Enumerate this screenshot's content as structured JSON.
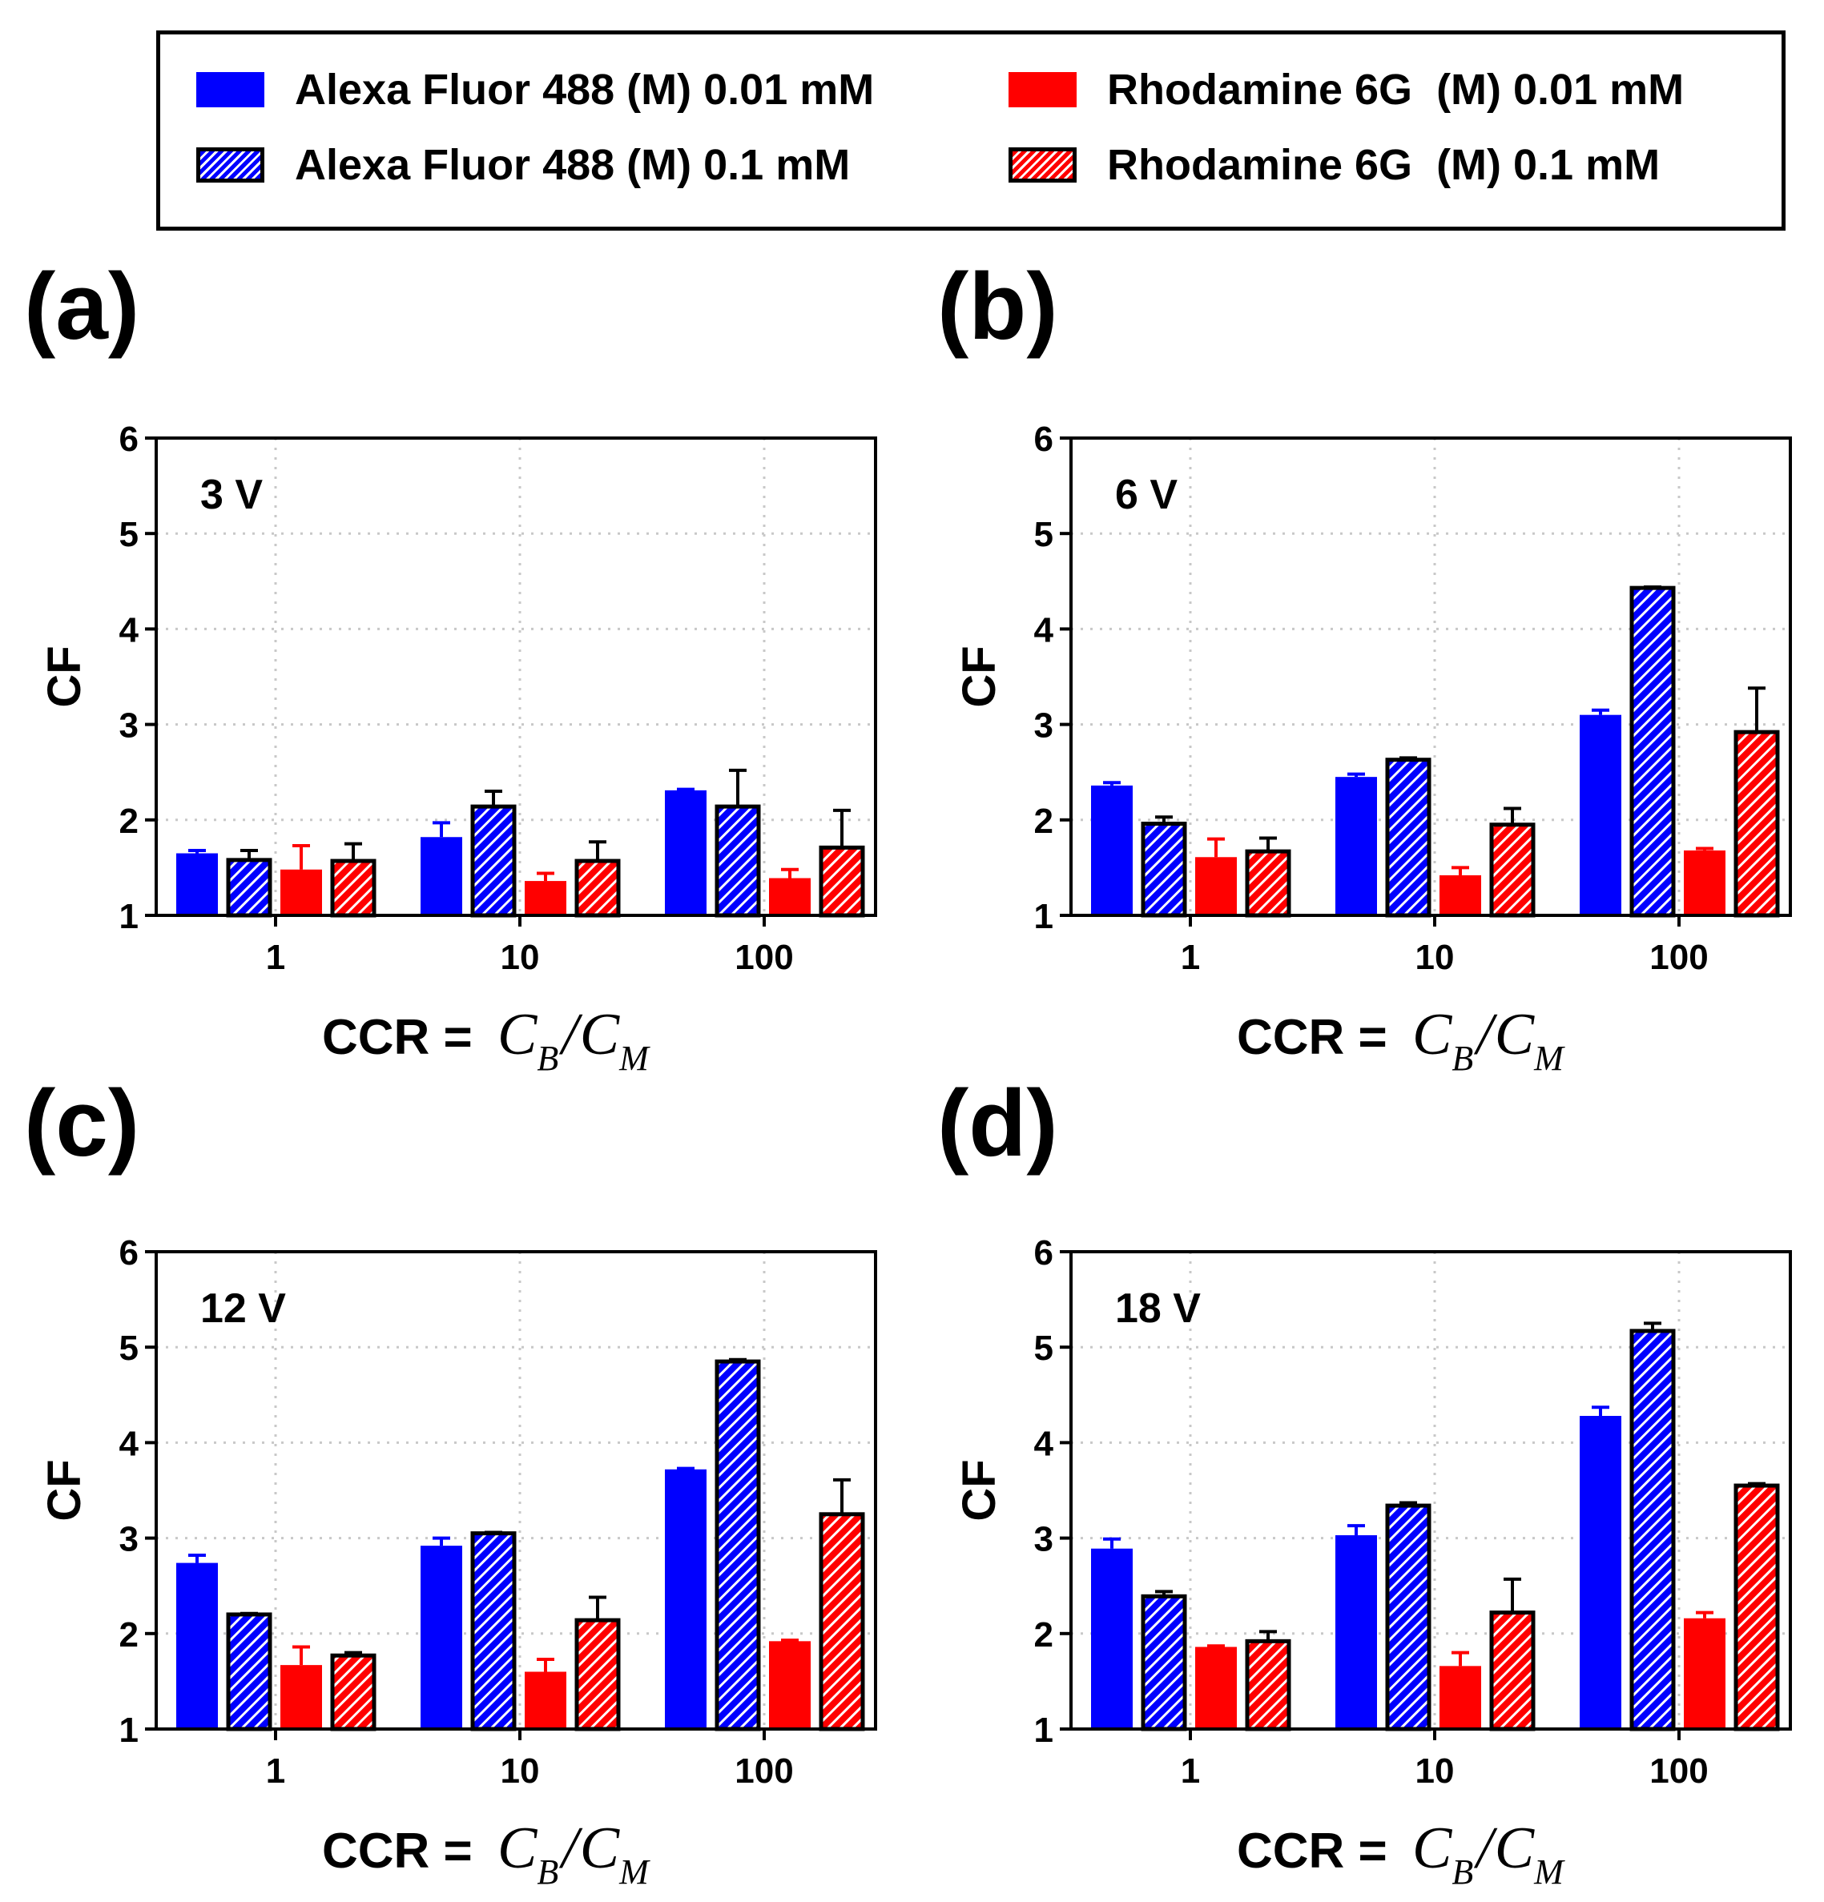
{
  "legend": {
    "items": [
      {
        "label": "Alexa Fluor 488 (M) 0.01 mM",
        "style": "solid-blue"
      },
      {
        "label": "Alexa Fluor 488 (M) 0.1 mM",
        "style": "hatch-blue"
      },
      {
        "label": "Rhodamine 6G  (M) 0.01 mM",
        "style": "solid-red"
      },
      {
        "label": "Rhodamine 6G  (M) 0.1 mM",
        "style": "hatch-red"
      }
    ]
  },
  "colors": {
    "blue": "#0000ff",
    "red": "#ff0000",
    "grid": "#c8c8c8",
    "axis": "#000000"
  },
  "chart_data": [
    {
      "panel": "(a)",
      "type": "bar",
      "annotation": "3 V",
      "categories": [
        "1",
        "10",
        "100"
      ],
      "ylabel": "CF",
      "xlabel_prefix": "CCR = ",
      "xlabel_num": "C",
      "xlabel_num_sub": "B",
      "xlabel_slash": "/",
      "xlabel_den": "C",
      "xlabel_den_sub": "M",
      "ylim": [
        1,
        6
      ],
      "yticks": [
        "1",
        "2",
        "3",
        "4",
        "5",
        "6"
      ],
      "grid": true,
      "series": [
        {
          "name": "Alexa Fluor 488 (M) 0.01 mM",
          "values": [
            1.65,
            1.82,
            2.31
          ],
          "errors": [
            0.03,
            0.15,
            0.01
          ]
        },
        {
          "name": "Alexa Fluor 488 (M) 0.1 mM",
          "values": [
            1.58,
            2.14,
            2.14
          ],
          "errors": [
            0.1,
            0.16,
            0.38
          ]
        },
        {
          "name": "Rhodamine 6G  (M) 0.01 mM",
          "values": [
            1.48,
            1.36,
            1.39
          ],
          "errors": [
            0.25,
            0.08,
            0.09
          ]
        },
        {
          "name": "Rhodamine 6G  (M) 0.1 mM",
          "values": [
            1.57,
            1.57,
            1.71
          ],
          "errors": [
            0.18,
            0.2,
            0.39
          ]
        }
      ]
    },
    {
      "panel": "(b)",
      "type": "bar",
      "annotation": "6 V",
      "categories": [
        "1",
        "10",
        "100"
      ],
      "ylabel": "CF",
      "xlabel_prefix": "CCR = ",
      "xlabel_num": "C",
      "xlabel_num_sub": "B",
      "xlabel_slash": "/",
      "xlabel_den": "C",
      "xlabel_den_sub": "M",
      "ylim": [
        1,
        6
      ],
      "yticks": [
        "1",
        "2",
        "3",
        "4",
        "5",
        "6"
      ],
      "grid": true,
      "series": [
        {
          "name": "Alexa Fluor 488 (M) 0.01 mM",
          "values": [
            2.36,
            2.45,
            3.1
          ],
          "errors": [
            0.03,
            0.03,
            0.05
          ]
        },
        {
          "name": "Alexa Fluor 488 (M) 0.1 mM",
          "values": [
            1.96,
            2.63,
            4.43
          ],
          "errors": [
            0.07,
            0.02,
            0.01
          ]
        },
        {
          "name": "Rhodamine 6G  (M) 0.01 mM",
          "values": [
            1.61,
            1.42,
            1.68
          ],
          "errors": [
            0.19,
            0.08,
            0.02
          ]
        },
        {
          "name": "Rhodamine 6G  (M) 0.1 mM",
          "values": [
            1.67,
            1.95,
            2.92
          ],
          "errors": [
            0.14,
            0.17,
            0.46
          ]
        }
      ]
    },
    {
      "panel": "(c)",
      "type": "bar",
      "annotation": "12 V",
      "categories": [
        "1",
        "10",
        "100"
      ],
      "ylabel": "CF",
      "xlabel_prefix": "CCR = ",
      "xlabel_num": "C",
      "xlabel_num_sub": "B",
      "xlabel_slash": "/",
      "xlabel_den": "C",
      "xlabel_den_sub": "M",
      "ylim": [
        1,
        6
      ],
      "yticks": [
        "1",
        "2",
        "3",
        "4",
        "5",
        "6"
      ],
      "grid": true,
      "series": [
        {
          "name": "Alexa Fluor 488 (M) 0.01 mM",
          "values": [
            2.74,
            2.92,
            3.72
          ],
          "errors": [
            0.08,
            0.08,
            0.01
          ]
        },
        {
          "name": "Alexa Fluor 488 (M) 0.1 mM",
          "values": [
            2.2,
            3.05,
            4.85
          ],
          "errors": [
            0.01,
            0.01,
            0.02
          ]
        },
        {
          "name": "Rhodamine 6G  (M) 0.01 mM",
          "values": [
            1.67,
            1.6,
            1.92
          ],
          "errors": [
            0.19,
            0.13,
            0.01
          ]
        },
        {
          "name": "Rhodamine 6G  (M) 0.1 mM",
          "values": [
            1.77,
            2.14,
            3.25
          ],
          "errors": [
            0.03,
            0.24,
            0.36
          ]
        }
      ]
    },
    {
      "panel": "(d)",
      "type": "bar",
      "annotation": "18 V",
      "categories": [
        "1",
        "10",
        "100"
      ],
      "ylabel": "CF",
      "xlabel_prefix": "CCR = ",
      "xlabel_num": "C",
      "xlabel_num_sub": "B",
      "xlabel_slash": "/",
      "xlabel_den": "C",
      "xlabel_den_sub": "M",
      "ylim": [
        1,
        6
      ],
      "yticks": [
        "1",
        "2",
        "3",
        "4",
        "5",
        "6"
      ],
      "grid": true,
      "series": [
        {
          "name": "Alexa Fluor 488 (M) 0.01 mM",
          "values": [
            2.89,
            3.03,
            4.28
          ],
          "errors": [
            0.1,
            0.1,
            0.09
          ]
        },
        {
          "name": "Alexa Fluor 488 (M) 0.1 mM",
          "values": [
            2.39,
            3.34,
            5.17
          ],
          "errors": [
            0.05,
            0.03,
            0.08
          ]
        },
        {
          "name": "Rhodamine 6G  (M) 0.01 mM",
          "values": [
            1.86,
            1.66,
            2.16
          ],
          "errors": [
            0.01,
            0.14,
            0.06
          ]
        },
        {
          "name": "Rhodamine 6G  (M) 0.1 mM",
          "values": [
            1.92,
            2.22,
            3.55
          ],
          "errors": [
            0.1,
            0.35,
            0.02
          ]
        }
      ]
    }
  ]
}
